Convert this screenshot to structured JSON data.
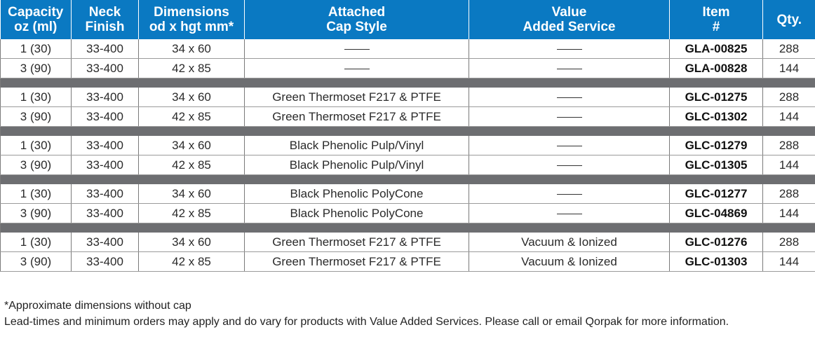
{
  "table": {
    "headers": [
      [
        "Capacity",
        "oz (ml)"
      ],
      [
        "Neck",
        "Finish"
      ],
      [
        "Dimensions",
        "od x hgt mm*"
      ],
      [
        "Attached",
        "Cap Style"
      ],
      [
        "Value",
        "Added Service"
      ],
      [
        "Item",
        "#"
      ],
      [
        "Qty.",
        ""
      ]
    ],
    "groups": [
      [
        [
          "1 (30)",
          "33-400",
          "34 x 60",
          "",
          "",
          "GLA-00825",
          "288"
        ],
        [
          "3 (90)",
          "33-400",
          "42 x 85",
          "",
          "",
          "GLA-00828",
          "144"
        ]
      ],
      [
        [
          "1 (30)",
          "33-400",
          "34 x 60",
          "Green Thermoset F217 & PTFE",
          "",
          "GLC-01275",
          "288"
        ],
        [
          "3 (90)",
          "33-400",
          "42 x 85",
          "Green Thermoset F217 & PTFE",
          "",
          "GLC-01302",
          "144"
        ]
      ],
      [
        [
          "1 (30)",
          "33-400",
          "34 x 60",
          "Black Phenolic Pulp/Vinyl",
          "",
          "GLC-01279",
          "288"
        ],
        [
          "3 (90)",
          "33-400",
          "42 x 85",
          "Black Phenolic Pulp/Vinyl",
          "",
          "GLC-01305",
          "144"
        ]
      ],
      [
        [
          "1 (30)",
          "33-400",
          "34 x 60",
          "Black Phenolic PolyCone",
          "",
          "GLC-01277",
          "288"
        ],
        [
          "3 (90)",
          "33-400",
          "42 x 85",
          "Black Phenolic PolyCone",
          "",
          "GLC-04869",
          "144"
        ]
      ],
      [
        [
          "1 (30)",
          "33-400",
          "34 x 60",
          "Green Thermoset F217 & PTFE",
          "Vacuum & Ionized",
          "GLC-01276",
          "288"
        ],
        [
          "3 (90)",
          "33-400",
          "42 x 85",
          "Green Thermoset F217 & PTFE",
          "Vacuum & Ionized",
          "GLC-01303",
          "144"
        ]
      ]
    ]
  },
  "notes": {
    "line1": "*Approximate dimensions without cap",
    "line2": "Lead-times and minimum orders may apply and do vary for products with Value Added Services.  Please call or email Qorpak for more information."
  },
  "colors": {
    "header_bg": "#0a79c2",
    "separator": "#6d6e71"
  }
}
